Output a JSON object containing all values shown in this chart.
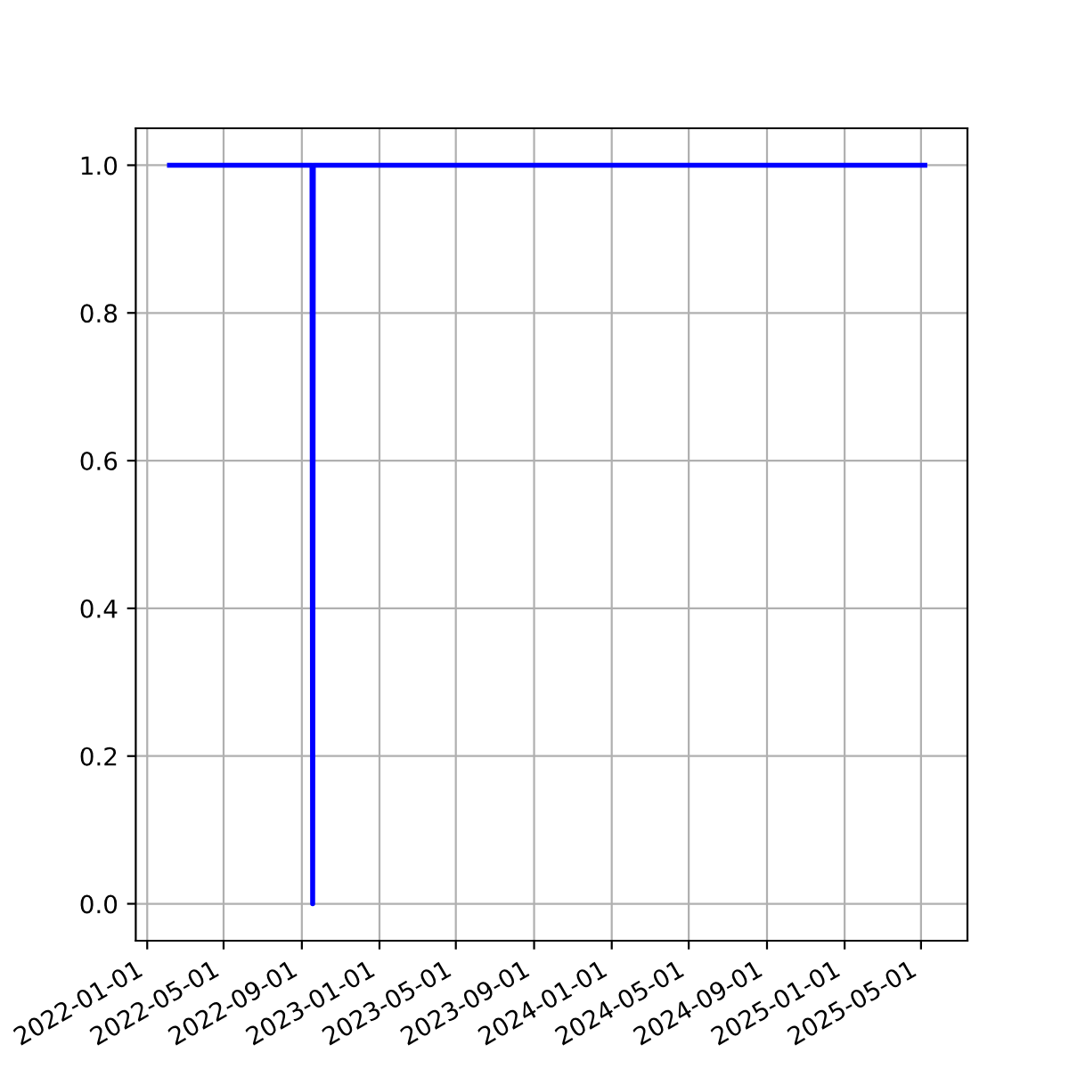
{
  "chart_data": {
    "type": "line",
    "x": [
      "2022-02-05",
      "2022-09-17",
      "2022-09-18",
      "2022-09-19",
      "2025-05-07"
    ],
    "series": [
      {
        "color": "#0000ff",
        "values": [
          1,
          1,
          0,
          1,
          1
        ]
      }
    ],
    "xlim": [
      "2021-12-14",
      "2025-07-13"
    ],
    "xticks": [
      "2022-01-01",
      "2022-05-01",
      "2022-09-01",
      "2023-01-01",
      "2023-05-01",
      "2023-09-01",
      "2024-01-01",
      "2024-05-01",
      "2024-09-01",
      "2025-01-01",
      "2025-05-01"
    ],
    "ylim": [
      -0.05,
      1.05
    ],
    "yticks": [
      {
        "value": 0,
        "label": "0.0"
      },
      {
        "value": 0.2,
        "label": "0.2"
      },
      {
        "value": 0.4,
        "label": "0.4"
      },
      {
        "value": 0.6,
        "label": "0.6"
      },
      {
        "value": 0.8,
        "label": "0.8"
      },
      {
        "value": 1,
        "label": "1.0"
      }
    ],
    "grid": true
  }
}
